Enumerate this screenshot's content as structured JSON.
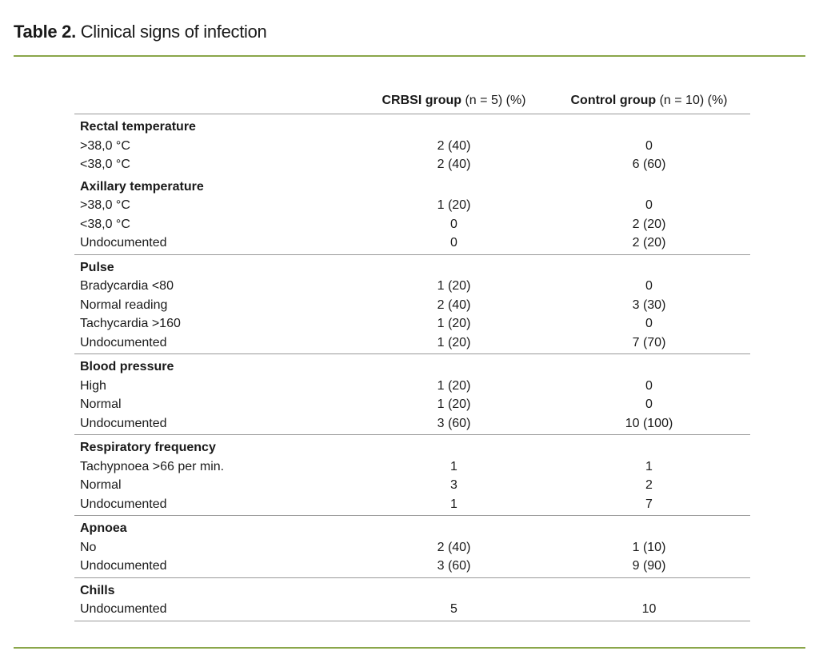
{
  "title": {
    "label": "Table 2.",
    "text": " Clinical signs of infection"
  },
  "colors": {
    "rule": "#8aa64a"
  },
  "columns": [
    {
      "bold": "CRBSI group",
      "rest": " (n = 5) (%)"
    },
    {
      "bold": "Control group",
      "rest": " (n = 10) (%)"
    }
  ],
  "groups": [
    {
      "rows": [
        {
          "label": "Rectal temperature",
          "header": true
        },
        {
          "label": ">38,0 °C",
          "a": "2 (40)",
          "b": "0"
        },
        {
          "label": "<38,0 °C",
          "a": "2 (40)",
          "b": "6 (60)"
        },
        {
          "label": "Axillary temperature",
          "header": true
        },
        {
          "label": ">38,0 °C",
          "a": "1 (20)",
          "b": "0"
        },
        {
          "label": "<38,0 °C",
          "a": "0",
          "b": "2 (20)"
        },
        {
          "label": "Undocumented",
          "a": "0",
          "b": "2 (20)"
        }
      ]
    },
    {
      "rows": [
        {
          "label": "Pulse",
          "header": true
        },
        {
          "label": "Bradycardia <80",
          "a": "1 (20)",
          "b": "0"
        },
        {
          "label": "Normal reading",
          "a": "2 (40)",
          "b": "3 (30)"
        },
        {
          "label": "Tachycardia >160",
          "a": "1 (20)",
          "b": "0"
        },
        {
          "label": "Undocumented",
          "a": "1 (20)",
          "b": "7 (70)"
        }
      ]
    },
    {
      "rows": [
        {
          "label": "Blood pressure",
          "header": true
        },
        {
          "label": "High",
          "a": "1 (20)",
          "b": "0"
        },
        {
          "label": "Normal",
          "a": "1 (20)",
          "b": "0"
        },
        {
          "label": "Undocumented",
          "a": "3 (60)",
          "b": "10 (100)"
        }
      ]
    },
    {
      "rows": [
        {
          "label": "Respiratory frequency",
          "header": true
        },
        {
          "label": "Tachypnoea >66 per min.",
          "a": "1",
          "b": "1"
        },
        {
          "label": "Normal",
          "a": "3",
          "b": "2"
        },
        {
          "label": "Undocumented",
          "a": "1",
          "b": "7"
        }
      ]
    },
    {
      "rows": [
        {
          "label": "Apnoea",
          "header": true
        },
        {
          "label": "No",
          "a": "2 (40)",
          "b": "1 (10)"
        },
        {
          "label": "Undocumented",
          "a": "3 (60)",
          "b": "9 (90)"
        }
      ]
    },
    {
      "rows": [
        {
          "label": "Chills",
          "header": true
        },
        {
          "label": "Undocumented",
          "a": "5",
          "b": "10"
        }
      ]
    }
  ]
}
